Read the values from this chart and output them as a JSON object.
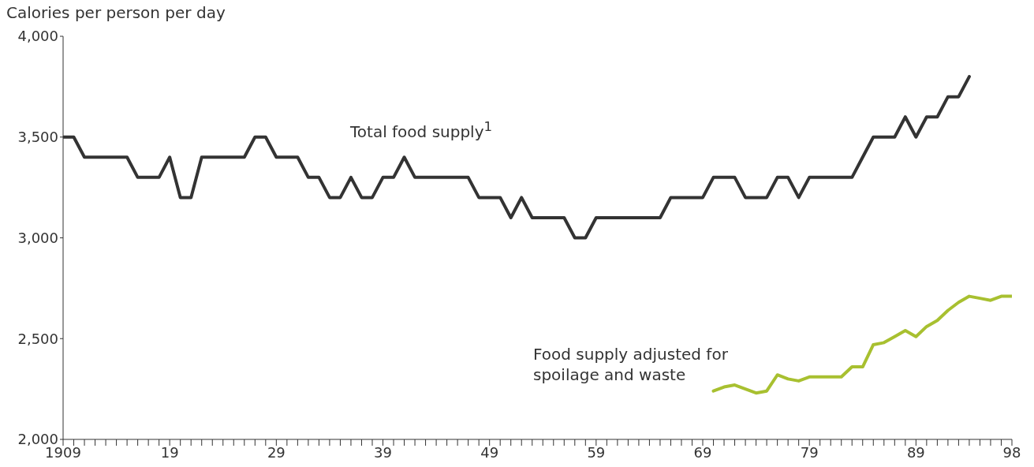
{
  "chart_data": {
    "type": "line",
    "ylabel": "Calories per person per day",
    "series": [
      {
        "name": "Total food supply$^{1}$",
        "color": "#333333",
        "x": [
          1909,
          1910,
          1911,
          1912,
          1913,
          1914,
          1915,
          1916,
          1917,
          1918,
          1919,
          1920,
          1921,
          1922,
          1923,
          1924,
          1925,
          1926,
          1927,
          1928,
          1929,
          1930,
          1931,
          1932,
          1933,
          1934,
          1935,
          1936,
          1937,
          1938,
          1939,
          1940,
          1941,
          1942,
          1943,
          1944,
          1945,
          1946,
          1947,
          1948,
          1949,
          1950,
          1951,
          1952,
          1953,
          1954,
          1955,
          1956,
          1957,
          1958,
          1959,
          1960,
          1961,
          1962,
          1963,
          1964,
          1965,
          1966,
          1967,
          1968,
          1969,
          1970,
          1971,
          1972,
          1973,
          1974,
          1975,
          1976,
          1977,
          1978,
          1979,
          1980,
          1981,
          1982,
          1983,
          1984,
          1985,
          1986,
          1987,
          1988,
          1989,
          1990,
          1991,
          1992,
          1993,
          1994
        ],
        "values": [
          3500,
          3500,
          3400,
          3400,
          3400,
          3400,
          3400,
          3300,
          3300,
          3300,
          3400,
          3200,
          3200,
          3400,
          3400,
          3400,
          3400,
          3400,
          3500,
          3500,
          3400,
          3400,
          3400,
          3300,
          3300,
          3200,
          3200,
          3300,
          3200,
          3200,
          3300,
          3300,
          3400,
          3300,
          3300,
          3300,
          3300,
          3300,
          3300,
          3200,
          3200,
          3200,
          3100,
          3200,
          3100,
          3100,
          3100,
          3100,
          3000,
          3000,
          3100,
          3100,
          3100,
          3100,
          3100,
          3100,
          3100,
          3200,
          3200,
          3200,
          3200,
          3300,
          3300,
          3300,
          3200,
          3200,
          3200,
          3300,
          3300,
          3200,
          3300,
          3300,
          3300,
          3300,
          3300,
          3400,
          3500,
          3500,
          3500,
          3600,
          3500,
          3600,
          3600,
          3700,
          3700,
          3800
        ]
      },
      {
        "name": "Food supply adjusted for spoilage and waste",
        "color": "#a8c030",
        "x": [
          1970,
          1971,
          1972,
          1973,
          1974,
          1975,
          1976,
          1977,
          1978,
          1979,
          1980,
          1981,
          1982,
          1983,
          1984,
          1985,
          1986,
          1987,
          1988,
          1989,
          1990,
          1991,
          1992,
          1993,
          1994,
          1995,
          1996,
          1997,
          1998
        ],
        "values": [
          2240,
          2260,
          2270,
          2250,
          2230,
          2240,
          2320,
          2300,
          2290,
          2310,
          2310,
          2310,
          2310,
          2360,
          2360,
          2470,
          2480,
          2510,
          2540,
          2510,
          2560,
          2590,
          2640,
          2680,
          2710,
          2700,
          2690,
          2710,
          2710
        ]
      }
    ],
    "xlim": [
      1909,
      1998
    ],
    "xticks": [
      {
        "value": 1909,
        "label": "1909"
      },
      {
        "value": 1910,
        "label": null
      },
      {
        "value": 1911,
        "label": null
      },
      {
        "value": 1912,
        "label": null
      },
      {
        "value": 1913,
        "label": null
      },
      {
        "value": 1914,
        "label": null
      },
      {
        "value": 1915,
        "label": null
      },
      {
        "value": 1916,
        "label": null
      },
      {
        "value": 1917,
        "label": null
      },
      {
        "value": 1918,
        "label": null
      },
      {
        "value": 1919,
        "label": "19"
      },
      {
        "value": 1920,
        "label": null
      },
      {
        "value": 1921,
        "label": null
      },
      {
        "value": 1922,
        "label": null
      },
      {
        "value": 1923,
        "label": null
      },
      {
        "value": 1924,
        "label": null
      },
      {
        "value": 1925,
        "label": null
      },
      {
        "value": 1926,
        "label": null
      },
      {
        "value": 1927,
        "label": null
      },
      {
        "value": 1928,
        "label": null
      },
      {
        "value": 1929,
        "label": "29"
      },
      {
        "value": 1930,
        "label": null
      },
      {
        "value": 1931,
        "label": null
      },
      {
        "value": 1932,
        "label": null
      },
      {
        "value": 1933,
        "label": null
      },
      {
        "value": 1934,
        "label": null
      },
      {
        "value": 1935,
        "label": null
      },
      {
        "value": 1936,
        "label": null
      },
      {
        "value": 1937,
        "label": null
      },
      {
        "value": 1938,
        "label": null
      },
      {
        "value": 1939,
        "label": "39"
      },
      {
        "value": 1940,
        "label": null
      },
      {
        "value": 1941,
        "label": null
      },
      {
        "value": 1942,
        "label": null
      },
      {
        "value": 1943,
        "label": null
      },
      {
        "value": 1944,
        "label": null
      },
      {
        "value": 1945,
        "label": null
      },
      {
        "value": 1946,
        "label": null
      },
      {
        "value": 1947,
        "label": null
      },
      {
        "value": 1948,
        "label": null
      },
      {
        "value": 1949,
        "label": "49"
      },
      {
        "value": 1950,
        "label": null
      },
      {
        "value": 1951,
        "label": null
      },
      {
        "value": 1952,
        "label": null
      },
      {
        "value": 1953,
        "label": null
      },
      {
        "value": 1954,
        "label": null
      },
      {
        "value": 1955,
        "label": null
      },
      {
        "value": 1956,
        "label": null
      },
      {
        "value": 1957,
        "label": null
      },
      {
        "value": 1958,
        "label": null
      },
      {
        "value": 1959,
        "label": "59"
      },
      {
        "value": 1960,
        "label": null
      },
      {
        "value": 1961,
        "label": null
      },
      {
        "value": 1962,
        "label": null
      },
      {
        "value": 1963,
        "label": null
      },
      {
        "value": 1964,
        "label": null
      },
      {
        "value": 1965,
        "label": null
      },
      {
        "value": 1966,
        "label": null
      },
      {
        "value": 1967,
        "label": null
      },
      {
        "value": 1968,
        "label": null
      },
      {
        "value": 1969,
        "label": "69"
      },
      {
        "value": 1970,
        "label": null
      },
      {
        "value": 1971,
        "label": null
      },
      {
        "value": 1972,
        "label": null
      },
      {
        "value": 1973,
        "label": null
      },
      {
        "value": 1974,
        "label": null
      },
      {
        "value": 1975,
        "label": null
      },
      {
        "value": 1976,
        "label": null
      },
      {
        "value": 1977,
        "label": null
      },
      {
        "value": 1978,
        "label": null
      },
      {
        "value": 1979,
        "label": "79"
      },
      {
        "value": 1980,
        "label": null
      },
      {
        "value": 1981,
        "label": null
      },
      {
        "value": 1982,
        "label": null
      },
      {
        "value": 1983,
        "label": null
      },
      {
        "value": 1984,
        "label": null
      },
      {
        "value": 1985,
        "label": null
      },
      {
        "value": 1986,
        "label": null
      },
      {
        "value": 1987,
        "label": null
      },
      {
        "value": 1988,
        "label": null
      },
      {
        "value": 1989,
        "label": "89"
      },
      {
        "value": 1990,
        "label": null
      },
      {
        "value": 1991,
        "label": null
      },
      {
        "value": 1992,
        "label": null
      },
      {
        "value": 1993,
        "label": null
      },
      {
        "value": 1994,
        "label": null
      },
      {
        "value": 1995,
        "label": null
      },
      {
        "value": 1996,
        "label": null
      },
      {
        "value": 1997,
        "label": null
      },
      {
        "value": 1998,
        "label": "98"
      }
    ],
    "ylim": [
      2000,
      4000
    ],
    "yticks": [
      {
        "value": 2000,
        "label": "2,000"
      },
      {
        "value": 2500,
        "label": "2,500"
      },
      {
        "value": 3000,
        "label": "3,000"
      },
      {
        "value": 3500,
        "label": "3,500"
      },
      {
        "value": 4000,
        "label": "4,000"
      }
    ],
    "grid": false,
    "legend": false,
    "marker": "none",
    "line_style": "solid"
  }
}
